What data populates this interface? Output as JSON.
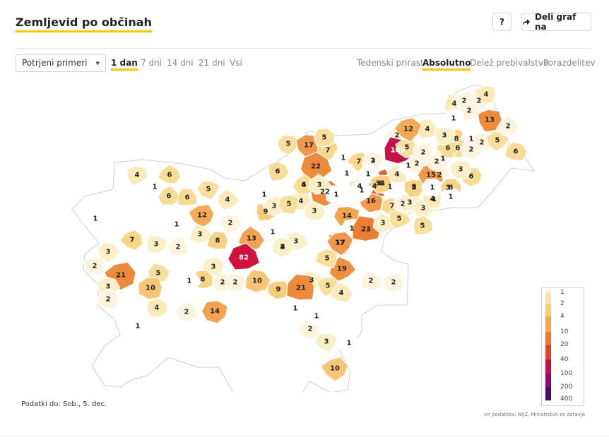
{
  "header": {
    "title": "Zemljevid po občinah",
    "help_label": "?",
    "share_label": "Deli graf na",
    "share_icon": "share-arrow-icon"
  },
  "controls": {
    "select_value": "Potrjeni primeri",
    "time_tabs": [
      "1 dan",
      "7 dni",
      "14 dni",
      "21 dni",
      "Vsi"
    ],
    "active_time_tab": "1 dan",
    "mode_tabs": [
      "Tedenski prirast",
      "Absolutno",
      "Delež prebivalstva",
      "Porazdelitev"
    ],
    "active_mode_tab": "Absolutno"
  },
  "legend": {
    "ticks": [
      "1",
      "2",
      "4",
      "10",
      "20",
      "40",
      "100",
      "200",
      "400"
    ],
    "colors": [
      "#fdf3de",
      "#fae3ae",
      "#f8cd7a",
      "#f5a94f",
      "#ee7b33",
      "#e0432f",
      "#c5104a",
      "#8e0a70",
      "#4a0a6e"
    ]
  },
  "map": {
    "regions": [
      {
        "v": 1,
        "c": "#ffffff"
      },
      {
        "v": 4,
        "c": "#faeab8"
      },
      {
        "v": 6,
        "c": "#f8dc95"
      },
      {
        "v": 1,
        "c": "#ffffff"
      },
      {
        "v": 6,
        "c": "#f8dc95"
      },
      {
        "v": 5,
        "c": "#f9df9d"
      },
      {
        "v": 6,
        "c": "#f8dc95"
      },
      {
        "v": 12,
        "c": "#f4aa55"
      },
      {
        "v": 3,
        "c": "#fbefc8"
      },
      {
        "v": 2,
        "c": "#fdf3de"
      },
      {
        "v": 4,
        "c": "#faeab8"
      },
      {
        "v": 1,
        "c": "#ffffff"
      },
      {
        "v": 9,
        "c": "#f7cd7c"
      },
      {
        "v": 7,
        "c": "#f8d888"
      },
      {
        "v": 3,
        "c": "#fbefc8"
      },
      {
        "v": 2,
        "c": "#fdf3de"
      },
      {
        "v": 3,
        "c": "#fbefc8"
      },
      {
        "v": 8,
        "c": "#f7d283"
      },
      {
        "v": 2,
        "c": "#fdf3de"
      },
      {
        "v": 13,
        "c": "#f3a24f"
      },
      {
        "v": 1,
        "c": "#ffffff"
      },
      {
        "v": 82,
        "c": "#d0123d"
      },
      {
        "v": 3,
        "c": "#fbefc8"
      },
      {
        "v": 2,
        "c": "#fdf3de"
      },
      {
        "v": 21,
        "c": "#ee8a3c"
      },
      {
        "v": 5,
        "c": "#f9df9d"
      },
      {
        "v": 10,
        "c": "#f6c575"
      },
      {
        "v": 3,
        "c": "#fbefc8"
      },
      {
        "v": 2,
        "c": "#fdf3de"
      },
      {
        "v": 4,
        "c": "#faeab8"
      },
      {
        "v": 2,
        "c": "#fdf3de"
      },
      {
        "v": 14,
        "c": "#f3a24f"
      },
      {
        "v": 8,
        "c": "#f7d283"
      },
      {
        "v": 2,
        "c": "#fdf3de"
      },
      {
        "v": 10,
        "c": "#f6c575"
      },
      {
        "v": 9,
        "c": "#f7cd7c"
      },
      {
        "v": 1,
        "c": "#ffffff"
      },
      {
        "v": 1,
        "c": "#ffffff"
      },
      {
        "v": 3,
        "c": "#fbefc8"
      },
      {
        "v": 7,
        "c": "#f8d888"
      },
      {
        "v": 1,
        "c": "#ffffff"
      },
      {
        "v": 2,
        "c": "#fdf3de"
      },
      {
        "v": 3,
        "c": "#fbefc8"
      },
      {
        "v": 21,
        "c": "#ee8a3c"
      },
      {
        "v": 5,
        "c": "#f9df9d"
      },
      {
        "v": 4,
        "c": "#faeab8"
      },
      {
        "v": 17,
        "c": "#f1964a"
      },
      {
        "v": 1,
        "c": "#ffffff"
      },
      {
        "v": 3,
        "c": "#fbefc8"
      },
      {
        "v": 1,
        "c": "#ffffff"
      },
      {
        "v": 10,
        "c": "#f6c575"
      },
      {
        "v": 2,
        "c": "#fdf3de"
      },
      {
        "v": 2,
        "c": "#fdf3de"
      },
      {
        "v": 19,
        "c": "#ef8f40"
      },
      {
        "v": 5,
        "c": "#f9df9d"
      },
      {
        "v": 6,
        "c": "#f8dc95"
      },
      {
        "v": 4,
        "c": "#faeab8"
      },
      {
        "v": 1,
        "c": "#ffffff"
      },
      {
        "v": 3,
        "c": "#fbefc8"
      },
      {
        "v": 5,
        "c": "#f9df9d"
      },
      {
        "v": 4,
        "c": "#faeab8"
      },
      {
        "v": 17,
        "c": "#f1964a"
      },
      {
        "v": 3,
        "c": "#fbefc8"
      },
      {
        "v": 7,
        "c": "#f8d888"
      },
      {
        "v": 22,
        "c": "#ed8a3c"
      },
      {
        "v": 1,
        "c": "#ffffff"
      },
      {
        "v": 5,
        "c": "#f9df9d"
      },
      {
        "v": 7,
        "c": "#f8d888"
      },
      {
        "v": 22,
        "c": "#ed8a3c"
      },
      {
        "v": 1,
        "c": "#ffffff"
      },
      {
        "v": 4,
        "c": "#faeab8"
      },
      {
        "v": 3,
        "c": "#fbefc8"
      },
      {
        "v": 4,
        "c": "#faeab8"
      },
      {
        "v": 6,
        "c": "#f8dc95"
      },
      {
        "v": 14,
        "c": "#f3a24f"
      },
      {
        "v": 1,
        "c": "#ffffff"
      },
      {
        "v": 17,
        "c": "#f1964a"
      },
      {
        "v": 23,
        "c": "#ec7d33"
      },
      {
        "v": 16,
        "c": "#f19a4c"
      },
      {
        "v": 3,
        "c": "#fbefc8"
      },
      {
        "v": 7,
        "c": "#f8d888"
      },
      {
        "v": 5,
        "c": "#f9df9d"
      },
      {
        "v": 2,
        "c": "#fdf3de"
      },
      {
        "v": 3,
        "c": "#fbefc8"
      },
      {
        "v": 34,
        "c": "#e6602f"
      },
      {
        "v": 1,
        "c": "#ffffff"
      },
      {
        "v": 4,
        "c": "#faeab8"
      },
      {
        "v": 5,
        "c": "#f9df9d"
      },
      {
        "v": 1,
        "c": "#ffffff"
      },
      {
        "v": 8,
        "c": "#f7d283"
      },
      {
        "v": 3,
        "c": "#fbefc8"
      },
      {
        "v": 4,
        "c": "#faeab8"
      },
      {
        "v": 5,
        "c": "#f9df9d"
      },
      {
        "v": 2,
        "c": "#fdf3de"
      },
      {
        "v": 100,
        "c": "#c5104a"
      },
      {
        "v": 5,
        "c": "#f9df9d"
      },
      {
        "v": 2,
        "c": "#fdf3de"
      },
      {
        "v": 2,
        "c": "#fdf3de"
      },
      {
        "v": 4,
        "c": "#faeab8"
      },
      {
        "v": 2,
        "c": "#fdf3de"
      },
      {
        "v": 3,
        "c": "#fbefc8"
      },
      {
        "v": 15,
        "c": "#f19a4c"
      },
      {
        "v": 1,
        "c": "#ffffff"
      },
      {
        "v": 8,
        "c": "#f7d283"
      },
      {
        "v": 6,
        "c": "#f8dc95"
      },
      {
        "v": 1,
        "c": "#ffffff"
      },
      {
        "v": 3,
        "c": "#fbefc8"
      },
      {
        "v": 1,
        "c": "#ffffff"
      },
      {
        "v": 8,
        "c": "#f7d283"
      },
      {
        "v": 1,
        "c": "#ffffff"
      },
      {
        "v": 6,
        "c": "#f8dc95"
      },
      {
        "v": 2,
        "c": "#fdf3de"
      },
      {
        "v": 2,
        "c": "#fdf3de"
      },
      {
        "v": 5,
        "c": "#f9df9d"
      },
      {
        "v": 6,
        "c": "#f8dc95"
      },
      {
        "v": 13,
        "c": "#ef8a3c"
      },
      {
        "v": 2,
        "c": "#fdf3de"
      },
      {
        "v": 6,
        "c": "#f8dc95"
      },
      {
        "v": 4,
        "c": "#faeab8"
      },
      {
        "v": 12,
        "c": "#f4aa55"
      },
      {
        "v": 4,
        "c": "#faeab8"
      },
      {
        "v": 2,
        "c": "#fdf3de"
      },
      {
        "v": 2,
        "c": "#fdf3de"
      },
      {
        "v": 4,
        "c": "#faeab8"
      },
      {
        "v": 2,
        "c": "#fdf3de"
      },
      {
        "v": 1,
        "c": "#ffffff"
      },
      {
        "v": 3,
        "c": "#fbefc8"
      },
      {
        "v": 2,
        "c": "#fdf3de"
      },
      {
        "v": 2,
        "c": "#fdf3de"
      },
      {
        "v": 1,
        "c": "#ffffff"
      },
      {
        "v": 1,
        "c": "#ffffff"
      },
      {
        "v": 1,
        "c": "#ffffff"
      },
      {
        "v": 8,
        "c": "#f7d283"
      },
      {
        "v": 3,
        "c": "#fbefc8"
      },
      {
        "v": 5,
        "c": "#f9df9d"
      },
      {
        "v": 2,
        "c": "#fdf3de"
      },
      {
        "v": 1,
        "c": "#ffffff"
      },
      {
        "v": 3,
        "c": "#fbefc8"
      },
      {
        "v": 4,
        "c": "#faeab8"
      },
      {
        "v": 3,
        "c": "#fbefc8"
      }
    ]
  },
  "footer": {
    "data_date": "Podatki do: Sob., 5. dec.",
    "source": "vir podatkov: NIJZ, Ministrstvo za zdravje"
  }
}
